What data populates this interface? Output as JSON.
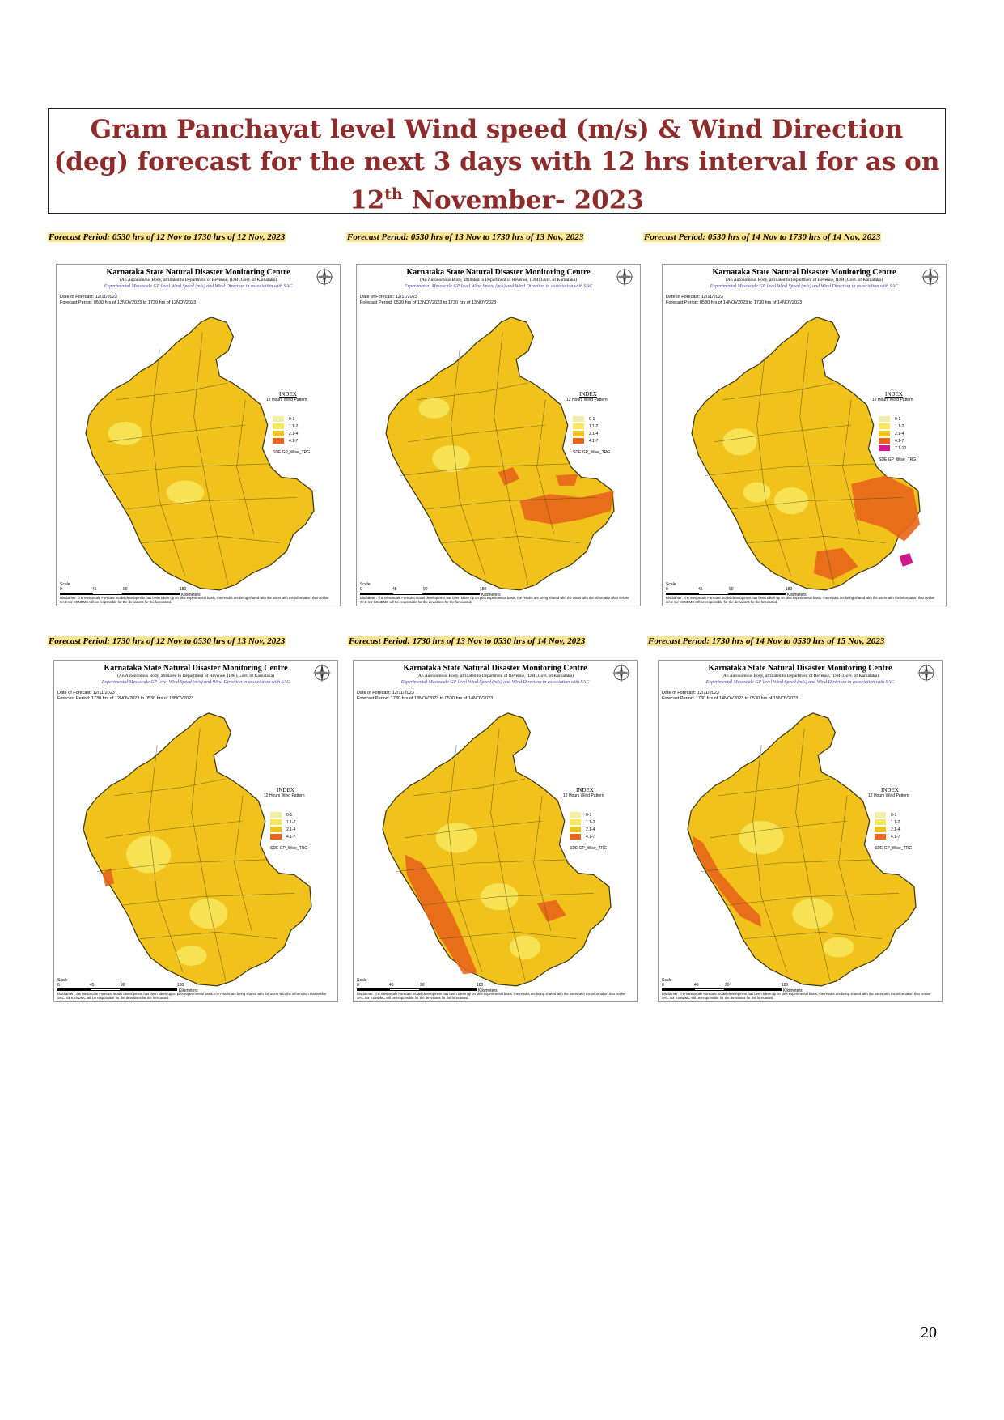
{
  "title": {
    "line1": "Gram Panchayat level Wind speed (m/s) & Wind Direction",
    "line2": "(deg) forecast for the next 3 days with 12 hrs interval for as on",
    "line3_day": "12",
    "line3_sup": "th",
    "line3_rest": " November- 2023"
  },
  "panel_common": {
    "header": "Karnataka State Natural Disaster Monitoring Centre",
    "subheader": "(An Autonomous Body, affiliated to Department of Revenue, (DM),Govt. of Karnataka)",
    "product": "Experimental Mesoscale GP level Wind Speed (m/s) and Wind Direction in association with SAC",
    "index_title": "INDEX",
    "index_subtitle": "12 Hours Wind Pattern",
    "sde_label": "SDE GP_Wise_TRG",
    "scale_label": "Scale",
    "scale_ticks": [
      "0",
      "45",
      "90",
      "180"
    ],
    "scale_unit": "Kilometers",
    "disclaimer": "Disclaimer: The Mesoscale Forecast model development has been taken up on pilot experimental basis.The results are being shared with the users with the information that neither SAC nor KSNDMC will be responsible for the deviations for the forecasted."
  },
  "legend_colors": {
    "0-1": "#f3efa8",
    "1.1-2": "#f7e85c",
    "2.1-4": "#f2c21c",
    "4.1-7": "#e8651a",
    "7.1-10": "#d1178a"
  },
  "panels": [
    {
      "period": "Forecast Period: 0530 hrs of 12 Nov to 1730 hrs of 12 Nov, 2023",
      "date_line": "Date of Forecast: 12/11/2023",
      "period_line": "Forecast Period: 0530 hrs of 12NOV2023 to 1730 hrs of 12NOV2023",
      "legend": [
        "0-1",
        "1.1-2",
        "2.1-4",
        "4.1-7"
      ]
    },
    {
      "period": "Forecast Period: 0530 hrs of 13 Nov to 1730 hrs of 13 Nov, 2023",
      "date_line": "Date of Forecast: 12/11/2023",
      "period_line": "Forecast Period: 0530 hrs of 13NOV2023 to 1730 hrs of 13NOV2023",
      "legend": [
        "0-1",
        "1.1-2",
        "2.1-4",
        "4.1-7"
      ]
    },
    {
      "period": "Forecast Period: 0530 hrs of 14 Nov to 1730 hrs of 14 Nov, 2023",
      "date_line": "Date of Forecast: 12/11/2023",
      "period_line": "Forecast Period: 0530 hrs of 14NOV2023 to 1730 hrs of 14NOV2023",
      "legend": [
        "0-1",
        "1.1-2",
        "2.1-4",
        "4.1-7",
        "7.1-10"
      ]
    },
    {
      "period": "Forecast Period: 1730 hrs of 12 Nov to 0530 hrs of 13 Nov, 2023",
      "date_line": "Date of Forecast: 12/11/2023",
      "period_line": "Forecast Period: 1730 hrs of 12NOV2023 to 0530 hrs of 13NOV2023",
      "legend": [
        "0-1",
        "1.1-2",
        "2.1-4",
        "4.1-7"
      ]
    },
    {
      "period": "Forecast Period: 1730 hrs of 13 Nov to 0530 hrs of 14 Nov, 2023",
      "date_line": "Date of Forecast: 12/11/2023",
      "period_line": "Forecast Period: 1730 hrs of 13NOV2023 to 0530 hrs of 14NOV2023",
      "legend": [
        "0-1",
        "1.1-2",
        "2.1-4",
        "4.1-7"
      ]
    },
    {
      "period": "Forecast Period: 1730 hrs of 14 Nov to 0530 hrs of 15 Nov, 2023",
      "date_line": "Date of Forecast: 12/11/2023",
      "period_line": "Forecast Period: 1730 hrs of 14NOV2023 to 0530 hrs of 15NOV2023",
      "legend": [
        "0-1",
        "1.1-2",
        "2.1-4",
        "4.1-7"
      ]
    }
  ],
  "page_number": "20"
}
